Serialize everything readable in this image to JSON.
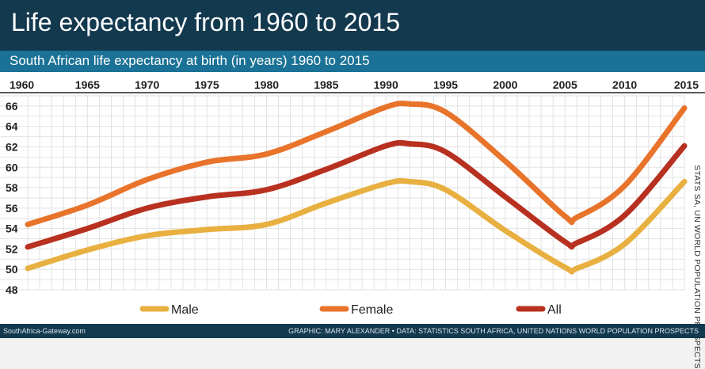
{
  "header": {
    "title": "Life expectancy from 1960 to 2015",
    "subtitle": "South African life expectancy at birth (in years) 1960 to 2015"
  },
  "side_source": "STATS SA, UN WORLD POPULATION PROSPECTS",
  "footer": {
    "left": "SouthAfrica-Gateway.com",
    "right": "GRAPHIC: MARY ALEXANDER • DATA: STATISTICS SOUTH AFRICA, UNITED NATIONS WORLD POPULATION PROSPECTS"
  },
  "colors": {
    "title_bar": "#13394f",
    "subtitle_bar": "#1b7296",
    "grid": "#e2e2e2",
    "male": "#e8b040",
    "female": "#e8732a",
    "all": "#b8301f"
  },
  "chart_data": {
    "type": "line",
    "title": "Life expectancy from 1960 to 2015",
    "subtitle": "South African life expectancy at birth (in years) 1960 to 2015",
    "xlabel": "",
    "ylabel": "",
    "xlim": [
      1960,
      2015
    ],
    "ylim": [
      48,
      67
    ],
    "x_ticks": [
      1960,
      1965,
      1970,
      1975,
      1980,
      1985,
      1990,
      1995,
      2000,
      2005,
      2010,
      2015
    ],
    "y_ticks": [
      48,
      50,
      52,
      54,
      56,
      58,
      60,
      62,
      64,
      66
    ],
    "x": [
      1960,
      1965,
      1970,
      1975,
      1980,
      1985,
      1990,
      1992,
      1995,
      2000,
      2005,
      2006,
      2010,
      2015
    ],
    "grid": true,
    "legend_position": "bottom",
    "series": [
      {
        "name": "Male",
        "color": "#e8b040",
        "values": [
          50.1,
          51.9,
          53.3,
          53.9,
          54.4,
          56.5,
          58.4,
          58.6,
          57.8,
          53.8,
          50.2,
          50.1,
          52.5,
          58.6
        ]
      },
      {
        "name": "Female",
        "color": "#e8732a",
        "values": [
          54.4,
          56.3,
          58.8,
          60.5,
          61.3,
          63.5,
          65.9,
          66.2,
          65.4,
          60.6,
          55.2,
          55.1,
          58.2,
          65.8
        ]
      },
      {
        "name": "All",
        "color": "#b8301f",
        "values": [
          52.2,
          54.0,
          56.0,
          57.1,
          57.8,
          59.8,
          62.1,
          62.3,
          61.5,
          57.1,
          52.7,
          52.6,
          55.3,
          62.1
        ]
      }
    ]
  }
}
